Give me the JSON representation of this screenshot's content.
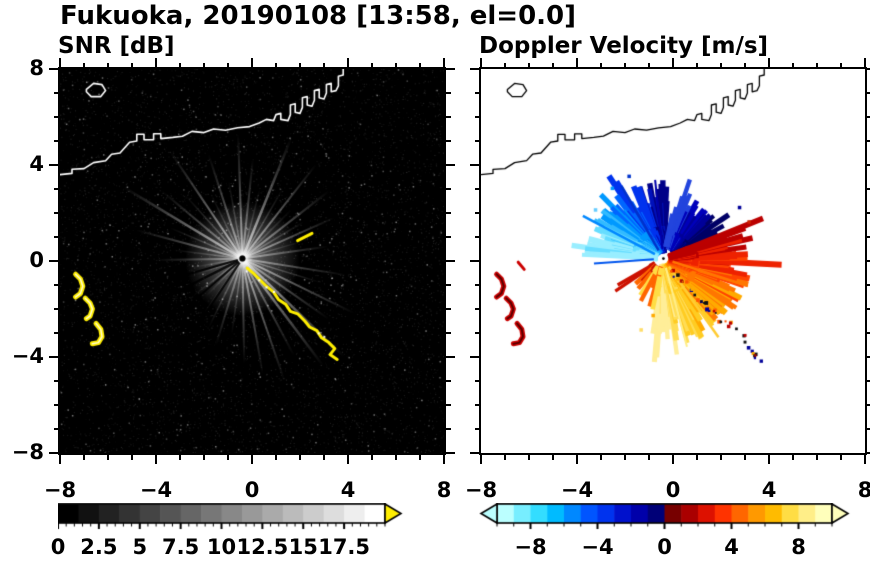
{
  "title": "Fukuoka, 20190108 [13:58, el=0.0]",
  "station": "Fukuoka",
  "date": "20190108",
  "time": "13:58",
  "elevation": "el=0.0",
  "coastlines": {
    "main": [
      [
        -8,
        3.6
      ],
      [
        -7.5,
        3.65
      ],
      [
        -7.5,
        3.82
      ],
      [
        -7.0,
        3.85
      ],
      [
        -6.6,
        4.1
      ],
      [
        -6.1,
        4.18
      ],
      [
        -5.85,
        4.45
      ],
      [
        -5.5,
        4.5
      ],
      [
        -5.1,
        4.95
      ],
      [
        -4.8,
        5.0
      ],
      [
        -4.8,
        5.28
      ],
      [
        -4.5,
        5.28
      ],
      [
        -4.5,
        5.05
      ],
      [
        -4.1,
        5.05
      ],
      [
        -4.1,
        5.3
      ],
      [
        -3.8,
        5.3
      ],
      [
        -3.8,
        5.1
      ],
      [
        -3.3,
        5.15
      ],
      [
        -2.9,
        5.2
      ],
      [
        -2.5,
        5.4
      ],
      [
        -2.0,
        5.35
      ],
      [
        -1.6,
        5.5
      ],
      [
        -1.1,
        5.45
      ],
      [
        -0.6,
        5.55
      ],
      [
        -0.1,
        5.6
      ],
      [
        0.3,
        5.75
      ],
      [
        0.6,
        5.9
      ],
      [
        0.9,
        5.85
      ],
      [
        1.0,
        6.1
      ],
      [
        1.2,
        6.15
      ],
      [
        1.2,
        5.9
      ],
      [
        1.5,
        5.85
      ],
      [
        1.6,
        6.1
      ],
      [
        1.6,
        6.5
      ],
      [
        1.8,
        6.55
      ],
      [
        1.8,
        6.2
      ],
      [
        2.0,
        6.15
      ],
      [
        2.1,
        6.4
      ],
      [
        2.1,
        6.8
      ],
      [
        2.3,
        6.85
      ],
      [
        2.3,
        6.5
      ],
      [
        2.5,
        6.45
      ],
      [
        2.6,
        6.7
      ],
      [
        2.6,
        7.1
      ],
      [
        2.8,
        7.15
      ],
      [
        2.8,
        6.8
      ],
      [
        3.0,
        6.75
      ],
      [
        3.1,
        7.0
      ],
      [
        3.1,
        7.35
      ],
      [
        3.3,
        7.4
      ],
      [
        3.3,
        7.05
      ],
      [
        3.5,
        7.1
      ],
      [
        3.6,
        7.3
      ],
      [
        3.6,
        7.7
      ],
      [
        3.8,
        7.75
      ],
      [
        3.8,
        8.05
      ]
    ],
    "island_top_left": [
      [
        -6.9,
        7.15
      ],
      [
        -6.6,
        7.4
      ],
      [
        -6.25,
        7.35
      ],
      [
        -6.1,
        7.1
      ],
      [
        -6.3,
        6.85
      ],
      [
        -6.7,
        6.85
      ],
      [
        -6.9,
        7.05
      ]
    ],
    "islets": [
      [
        [
          -7.35,
          -0.55
        ],
        [
          -7.15,
          -0.75
        ],
        [
          -7.05,
          -1.05
        ],
        [
          -7.15,
          -1.35
        ],
        [
          -7.35,
          -1.5
        ]
      ],
      [
        [
          -6.95,
          -1.55
        ],
        [
          -6.75,
          -1.75
        ],
        [
          -6.65,
          -2.0
        ],
        [
          -6.75,
          -2.3
        ],
        [
          -6.9,
          -2.4
        ]
      ],
      [
        [
          -6.5,
          -2.6
        ],
        [
          -6.3,
          -2.85
        ],
        [
          -6.25,
          -3.15
        ],
        [
          -6.4,
          -3.4
        ],
        [
          -6.65,
          -3.45
        ]
      ]
    ],
    "sandbar": [
      [
        -0.2,
        -0.3
      ],
      [
        0.1,
        -0.55
      ],
      [
        0.35,
        -0.8
      ],
      [
        0.6,
        -1.05
      ],
      [
        0.9,
        -1.3
      ],
      [
        1.1,
        -1.6
      ],
      [
        1.4,
        -1.8
      ],
      [
        1.6,
        -2.1
      ],
      [
        1.9,
        -2.2
      ],
      [
        2.2,
        -2.5
      ],
      [
        2.4,
        -2.75
      ],
      [
        2.7,
        -2.9
      ],
      [
        2.9,
        -3.2
      ],
      [
        3.2,
        -3.4
      ],
      [
        3.45,
        -3.65
      ],
      [
        3.25,
        -3.9
      ],
      [
        3.55,
        -4.1
      ]
    ],
    "ne_dash": [
      [
        1.9,
        0.85
      ],
      [
        2.5,
        1.15
      ]
    ],
    "west_dash": [
      [
        -6.45,
        -0.05
      ],
      [
        -6.2,
        -0.35
      ]
    ]
  },
  "chart_data": [
    {
      "type": "radar_ppi",
      "field": "SNR",
      "title": "SNR [dB]",
      "units": "dB",
      "xlim": [
        -8,
        8
      ],
      "ylim": [
        -8,
        8
      ],
      "xticks": [
        -8,
        -4,
        0,
        4,
        8
      ],
      "xtick_labels": [
        "−8",
        "−4",
        "0",
        "4",
        "8"
      ],
      "yticks": [
        8,
        4,
        0,
        -4,
        -8
      ],
      "ytick_labels": [
        "8",
        "4",
        "0",
        "−4",
        "−8"
      ],
      "minor_tick_step": 1,
      "show_y_labels": true,
      "background": "#000000",
      "coast_color": "#ffffff",
      "echo_color": "#ffee00",
      "radar_center": [
        -0.4,
        0.1
      ],
      "glow_radius": 2.4,
      "seed": 20190108,
      "noise": {
        "count": 6500,
        "bright": 350
      },
      "streaks": [
        [
          8,
          3.6,
          2,
          0.5
        ],
        [
          16,
          2.6,
          1.5,
          0.35
        ],
        [
          24,
          4.2,
          2,
          0.6
        ],
        [
          31,
          3.0,
          1.5,
          0.4
        ],
        [
          38,
          4.6,
          2,
          0.55
        ],
        [
          45,
          2.9,
          1.5,
          0.35
        ],
        [
          52,
          5.0,
          2,
          0.62
        ],
        [
          60,
          3.4,
          1.5,
          0.4
        ],
        [
          68,
          5.4,
          2.5,
          0.7
        ],
        [
          76,
          3.0,
          1.5,
          0.35
        ],
        [
          84,
          4.2,
          2,
          0.5
        ],
        [
          92,
          5.2,
          2,
          0.6
        ],
        [
          100,
          3.3,
          1.5,
          0.4
        ],
        [
          108,
          4.6,
          2,
          0.55
        ],
        [
          116,
          3.0,
          1.5,
          0.35
        ],
        [
          124,
          5.4,
          2,
          0.65
        ],
        [
          132,
          3.6,
          1.5,
          0.4
        ],
        [
          140,
          4.4,
          2,
          0.5
        ],
        [
          149,
          5.8,
          2.5,
          0.68
        ],
        [
          157,
          3.3,
          1.5,
          0.4
        ],
        [
          165,
          4.6,
          2,
          0.55
        ],
        [
          173,
          2.9,
          1.5,
          0.35
        ],
        [
          181,
          3.6,
          2,
          0.45
        ],
        [
          190,
          2.2,
          1.5,
          0.3
        ],
        [
          199,
          2.1,
          1.5,
          0.32
        ],
        [
          208,
          2.3,
          1.5,
          0.3
        ],
        [
          217,
          2.6,
          1.5,
          0.33
        ],
        [
          226,
          2.2,
          1.5,
          0.3
        ],
        [
          235,
          2.8,
          1.5,
          0.35
        ],
        [
          244,
          3.2,
          1.5,
          0.38
        ],
        [
          253,
          3.8,
          2,
          0.45
        ],
        [
          262,
          3.2,
          1.5,
          0.4
        ],
        [
          271,
          4.4,
          2,
          0.52
        ],
        [
          280,
          4.9,
          2,
          0.58
        ],
        [
          289,
          5.4,
          2,
          0.62
        ],
        [
          298,
          4.6,
          2,
          0.5
        ],
        [
          307,
          5.6,
          2.5,
          0.66
        ],
        [
          316,
          5.9,
          2.5,
          0.7
        ],
        [
          325,
          4.4,
          2,
          0.52
        ],
        [
          334,
          5.2,
          2,
          0.6
        ],
        [
          343,
          3.4,
          1.5,
          0.42
        ],
        [
          351,
          4.4,
          2,
          0.52
        ]
      ],
      "dark_rays": [
        [
          196,
          3.2,
          2
        ],
        [
          207,
          5.6,
          2.5
        ],
        [
          221,
          3.8,
          2
        ],
        [
          236,
          4.8,
          2
        ]
      ],
      "colorbar": {
        "range": [
          0,
          20
        ],
        "tick_values": [
          0,
          2.5,
          5,
          7.5,
          10,
          12.5,
          15,
          17.5
        ],
        "tick_labels": [
          "0",
          "2.5",
          "5",
          "7.5",
          "10",
          "12.5",
          "15",
          "17.5"
        ],
        "minor_step": 0.5,
        "colors": [
          "#000000",
          "#111111",
          "#222222",
          "#333333",
          "#444444",
          "#555555",
          "#666666",
          "#777777",
          "#888888",
          "#999999",
          "#aaaaaa",
          "#bbbbbb",
          "#cccccc",
          "#dddddd",
          "#eeeeee",
          "#ffffff"
        ],
        "arrow_right": "#ffee00"
      }
    },
    {
      "type": "radar_ppi",
      "field": "VEL",
      "title": "Doppler Velocity [m/s]",
      "units": "m/s",
      "xlim": [
        -8,
        8
      ],
      "ylim": [
        -8,
        8
      ],
      "xticks": [
        -8,
        -4,
        0,
        4,
        8
      ],
      "xtick_labels": [
        "−8",
        "−4",
        "0",
        "4",
        "8"
      ],
      "yticks": [
        8,
        4,
        0,
        -4,
        -8
      ],
      "ytick_labels": [
        "8",
        "4",
        "0",
        "−4",
        "−8"
      ],
      "minor_tick_step": 1,
      "show_y_labels": false,
      "background": "#ffffff",
      "coast_color": "#000000",
      "radar_center": [
        -0.4,
        0.1
      ],
      "seed": 1358,
      "wedges": [
        {
          "a0": 86,
          "a1": 178,
          "r_in": 0.25,
          "r_base": 1.6,
          "r_var": 1.7,
          "step": 1.1,
          "width": 4,
          "skip": 0.12,
          "colors": [
            "#000088",
            "#0011bb",
            "#0033ee",
            "#0066ff",
            "#0099ff",
            "#33bbff",
            "#66ddff",
            "#99eeff"
          ]
        },
        {
          "a0": 26,
          "a1": 78,
          "r_in": 0.5,
          "r_base": 1.5,
          "r_var": 1.3,
          "step": 1.3,
          "width": 4,
          "skip": 0.18,
          "colors": [
            "#000066",
            "#000099",
            "#0000bb",
            "#2244dd"
          ]
        },
        {
          "a0": -98,
          "a1": 22,
          "r_in": 0.25,
          "r_base": 1.8,
          "r_var": 1.9,
          "step": 1.0,
          "width": 4,
          "skip": 0.1,
          "colors": [
            "#ffee99",
            "#ffdd55",
            "#ffcc22",
            "#ffaa00",
            "#ff7700",
            "#ff4400",
            "#ee2200",
            "#bb0000"
          ]
        },
        {
          "a0": -150,
          "a1": -98,
          "r_in": 0.4,
          "r_base": 0.9,
          "r_var": 1.4,
          "step": 4.0,
          "width": 3,
          "skip": 0.35,
          "colors": [
            "#cc1100",
            "#ff6600",
            "#ffdd44"
          ]
        }
      ],
      "spikes": [
        {
          "a": 184,
          "len": 2.9,
          "w": 2,
          "color": "#0055ee"
        },
        {
          "a": 152,
          "len": 3.8,
          "w": 2.5,
          "color": "#0088ff"
        },
        {
          "a": 120,
          "len": 3.5,
          "w": 2.5,
          "color": "#0033cc"
        },
        {
          "a": 96,
          "len": 3.3,
          "w": 2,
          "color": "#0000aa"
        },
        {
          "a": -18,
          "len": 3.7,
          "w": 2.5,
          "color": "#ff7700"
        },
        {
          "a": -55,
          "len": 4.0,
          "w": 2.5,
          "color": "#ffcc33"
        },
        {
          "a": -75,
          "len": 3.8,
          "w": 2,
          "color": "#ffee88"
        }
      ],
      "dots": [
        {
          "x": -2.6,
          "y": 3.1,
          "c": "#0099ff"
        },
        {
          "x": -3.3,
          "y": 2.2,
          "c": "#66ccff"
        },
        {
          "x": -1.9,
          "y": 3.6,
          "c": "#0033cc"
        },
        {
          "x": 2.7,
          "y": 2.3,
          "c": "#000099"
        },
        {
          "x": 3.1,
          "y": 1.7,
          "c": "#cc2200"
        },
        {
          "x": -0.9,
          "y": -2.2,
          "c": "#ffaa00"
        },
        {
          "x": -1.4,
          "y": -2.8,
          "c": "#ffdd66"
        }
      ],
      "speck_colors": [
        "#bb0000",
        "#ff5500",
        "#ffaa00",
        "#000099",
        "#111111"
      ],
      "island_colors": {
        "outer": "#cc0000",
        "inner": "#550000"
      },
      "colorbar": {
        "range": [
          -10,
          10
        ],
        "tick_values": [
          -8,
          -4,
          0,
          4,
          8
        ],
        "tick_labels": [
          "−8",
          "−4",
          "0",
          "4",
          "8"
        ],
        "minor_step": 1,
        "colors": [
          "#bbffff",
          "#77eeff",
          "#33ddff",
          "#00bbff",
          "#0088ff",
          "#0055ff",
          "#0033ee",
          "#0011cc",
          "#0000aa",
          "#000077",
          "#770000",
          "#aa0000",
          "#dd1100",
          "#ff3300",
          "#ff6600",
          "#ff9900",
          "#ffbb00",
          "#ffdd44",
          "#ffee88",
          "#ffffbb"
        ],
        "arrow_left": "#bbffff",
        "arrow_right": "#ffffbb"
      }
    }
  ]
}
